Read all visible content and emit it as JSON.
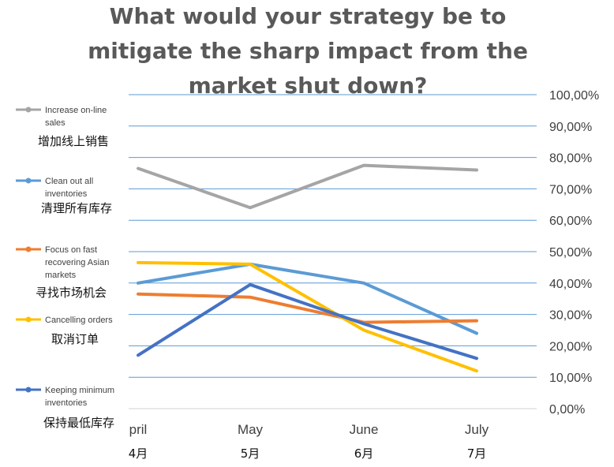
{
  "chart_data": {
    "type": "line",
    "title_lines": [
      "What would your strategy be to",
      "mitigate the sharp impact from the",
      "market shut down?"
    ],
    "categories": [
      "pril",
      "May",
      "June",
      "July"
    ],
    "categories_cn": [
      "4月",
      "5月",
      "6月",
      "7月"
    ],
    "ylim": [
      0,
      100
    ],
    "yticks": [
      "0,00%",
      "10,00%",
      "20,00%",
      "30,00%",
      "40,00%",
      "50,00%",
      "60,00%",
      "70,00%",
      "80,00%",
      "90,00%",
      "100,00%"
    ],
    "grid": true,
    "legend_position": "left",
    "series": [
      {
        "name": "Increase on-line sales",
        "name_cn": "增加线上销售",
        "color": "#a5a5a5",
        "values": [
          76.5,
          64,
          77.5,
          76
        ]
      },
      {
        "name": "Clean out all inventories",
        "name_cn": "清理所有库存",
        "color": "#5b9bd5",
        "values": [
          40,
          46,
          40,
          24
        ]
      },
      {
        "name": "Focus on fast recovering Asian markets",
        "name_cn": "寻找市场机会",
        "color": "#ed7d31",
        "values": [
          36.5,
          35.5,
          27.5,
          28
        ]
      },
      {
        "name": "Cancelling orders",
        "name_cn": "取消订单",
        "color": "#ffc000",
        "values": [
          46.5,
          46,
          25,
          12
        ]
      },
      {
        "name": "Keeping minimum inventories",
        "name_cn": "保持最低库存",
        "color": "#4472c4",
        "values": [
          17,
          39.5,
          27,
          16
        ]
      }
    ]
  }
}
